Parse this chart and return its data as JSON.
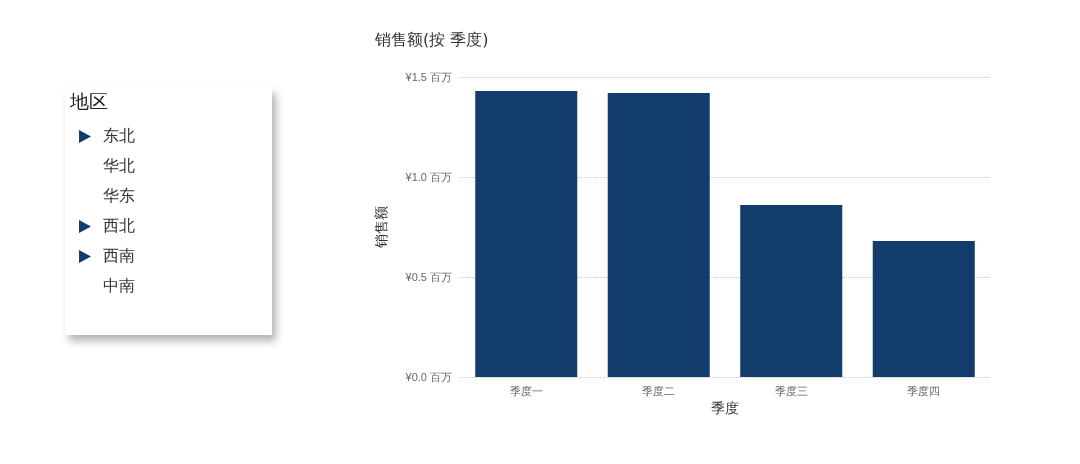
{
  "chart_data": [
    {
      "type": "other",
      "title": "地区",
      "annotations": [
        "东北",
        "华北",
        "华东",
        "西北",
        "西南",
        "中南"
      ]
    },
    {
      "type": "bar",
      "title": "销售额(按 季度)",
      "xlabel": "季度",
      "ylabel": "销售额",
      "categories": [
        "季度一",
        "季度二",
        "季度三",
        "季度四"
      ],
      "series": [
        {
          "color": "#123c6b",
          "values": [
            1.43,
            1.42,
            0.86,
            0.68
          ]
        }
      ],
      "ylim": [
        0,
        1.5
      ],
      "yticks": [
        {
          "value": 0,
          "label": "¥0.0 百万"
        },
        {
          "value": 0.5,
          "label": "¥0.5 百万"
        },
        {
          "value": 1,
          "label": "¥1.0 百万"
        },
        {
          "value": 1.5,
          "label": "¥1.5 百万"
        }
      ],
      "grid": "y"
    }
  ]
}
